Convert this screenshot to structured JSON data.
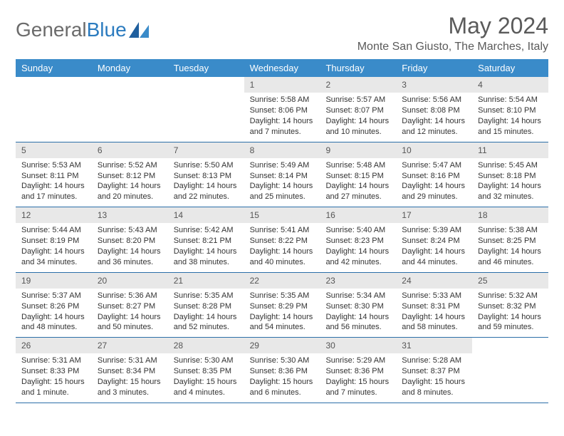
{
  "logo": {
    "text1": "General",
    "text2": "Blue"
  },
  "title": "May 2024",
  "location": "Monte San Giusto, The Marches, Italy",
  "colors": {
    "header_bg": "#3a8bc9",
    "header_text": "#ffffff",
    "daynum_bg": "#e8e8e8",
    "week_border": "#2b6fa8",
    "logo_gray": "#6b6b6b",
    "logo_blue": "#2b7bbf"
  },
  "day_names": [
    "Sunday",
    "Monday",
    "Tuesday",
    "Wednesday",
    "Thursday",
    "Friday",
    "Saturday"
  ],
  "weeks": [
    [
      {
        "n": "",
        "sunrise": "",
        "sunset": "",
        "daylight": ""
      },
      {
        "n": "",
        "sunrise": "",
        "sunset": "",
        "daylight": ""
      },
      {
        "n": "",
        "sunrise": "",
        "sunset": "",
        "daylight": ""
      },
      {
        "n": "1",
        "sunrise": "Sunrise: 5:58 AM",
        "sunset": "Sunset: 8:06 PM",
        "daylight": "Daylight: 14 hours and 7 minutes."
      },
      {
        "n": "2",
        "sunrise": "Sunrise: 5:57 AM",
        "sunset": "Sunset: 8:07 PM",
        "daylight": "Daylight: 14 hours and 10 minutes."
      },
      {
        "n": "3",
        "sunrise": "Sunrise: 5:56 AM",
        "sunset": "Sunset: 8:08 PM",
        "daylight": "Daylight: 14 hours and 12 minutes."
      },
      {
        "n": "4",
        "sunrise": "Sunrise: 5:54 AM",
        "sunset": "Sunset: 8:10 PM",
        "daylight": "Daylight: 14 hours and 15 minutes."
      }
    ],
    [
      {
        "n": "5",
        "sunrise": "Sunrise: 5:53 AM",
        "sunset": "Sunset: 8:11 PM",
        "daylight": "Daylight: 14 hours and 17 minutes."
      },
      {
        "n": "6",
        "sunrise": "Sunrise: 5:52 AM",
        "sunset": "Sunset: 8:12 PM",
        "daylight": "Daylight: 14 hours and 20 minutes."
      },
      {
        "n": "7",
        "sunrise": "Sunrise: 5:50 AM",
        "sunset": "Sunset: 8:13 PM",
        "daylight": "Daylight: 14 hours and 22 minutes."
      },
      {
        "n": "8",
        "sunrise": "Sunrise: 5:49 AM",
        "sunset": "Sunset: 8:14 PM",
        "daylight": "Daylight: 14 hours and 25 minutes."
      },
      {
        "n": "9",
        "sunrise": "Sunrise: 5:48 AM",
        "sunset": "Sunset: 8:15 PM",
        "daylight": "Daylight: 14 hours and 27 minutes."
      },
      {
        "n": "10",
        "sunrise": "Sunrise: 5:47 AM",
        "sunset": "Sunset: 8:16 PM",
        "daylight": "Daylight: 14 hours and 29 minutes."
      },
      {
        "n": "11",
        "sunrise": "Sunrise: 5:45 AM",
        "sunset": "Sunset: 8:18 PM",
        "daylight": "Daylight: 14 hours and 32 minutes."
      }
    ],
    [
      {
        "n": "12",
        "sunrise": "Sunrise: 5:44 AM",
        "sunset": "Sunset: 8:19 PM",
        "daylight": "Daylight: 14 hours and 34 minutes."
      },
      {
        "n": "13",
        "sunrise": "Sunrise: 5:43 AM",
        "sunset": "Sunset: 8:20 PM",
        "daylight": "Daylight: 14 hours and 36 minutes."
      },
      {
        "n": "14",
        "sunrise": "Sunrise: 5:42 AM",
        "sunset": "Sunset: 8:21 PM",
        "daylight": "Daylight: 14 hours and 38 minutes."
      },
      {
        "n": "15",
        "sunrise": "Sunrise: 5:41 AM",
        "sunset": "Sunset: 8:22 PM",
        "daylight": "Daylight: 14 hours and 40 minutes."
      },
      {
        "n": "16",
        "sunrise": "Sunrise: 5:40 AM",
        "sunset": "Sunset: 8:23 PM",
        "daylight": "Daylight: 14 hours and 42 minutes."
      },
      {
        "n": "17",
        "sunrise": "Sunrise: 5:39 AM",
        "sunset": "Sunset: 8:24 PM",
        "daylight": "Daylight: 14 hours and 44 minutes."
      },
      {
        "n": "18",
        "sunrise": "Sunrise: 5:38 AM",
        "sunset": "Sunset: 8:25 PM",
        "daylight": "Daylight: 14 hours and 46 minutes."
      }
    ],
    [
      {
        "n": "19",
        "sunrise": "Sunrise: 5:37 AM",
        "sunset": "Sunset: 8:26 PM",
        "daylight": "Daylight: 14 hours and 48 minutes."
      },
      {
        "n": "20",
        "sunrise": "Sunrise: 5:36 AM",
        "sunset": "Sunset: 8:27 PM",
        "daylight": "Daylight: 14 hours and 50 minutes."
      },
      {
        "n": "21",
        "sunrise": "Sunrise: 5:35 AM",
        "sunset": "Sunset: 8:28 PM",
        "daylight": "Daylight: 14 hours and 52 minutes."
      },
      {
        "n": "22",
        "sunrise": "Sunrise: 5:35 AM",
        "sunset": "Sunset: 8:29 PM",
        "daylight": "Daylight: 14 hours and 54 minutes."
      },
      {
        "n": "23",
        "sunrise": "Sunrise: 5:34 AM",
        "sunset": "Sunset: 8:30 PM",
        "daylight": "Daylight: 14 hours and 56 minutes."
      },
      {
        "n": "24",
        "sunrise": "Sunrise: 5:33 AM",
        "sunset": "Sunset: 8:31 PM",
        "daylight": "Daylight: 14 hours and 58 minutes."
      },
      {
        "n": "25",
        "sunrise": "Sunrise: 5:32 AM",
        "sunset": "Sunset: 8:32 PM",
        "daylight": "Daylight: 14 hours and 59 minutes."
      }
    ],
    [
      {
        "n": "26",
        "sunrise": "Sunrise: 5:31 AM",
        "sunset": "Sunset: 8:33 PM",
        "daylight": "Daylight: 15 hours and 1 minute."
      },
      {
        "n": "27",
        "sunrise": "Sunrise: 5:31 AM",
        "sunset": "Sunset: 8:34 PM",
        "daylight": "Daylight: 15 hours and 3 minutes."
      },
      {
        "n": "28",
        "sunrise": "Sunrise: 5:30 AM",
        "sunset": "Sunset: 8:35 PM",
        "daylight": "Daylight: 15 hours and 4 minutes."
      },
      {
        "n": "29",
        "sunrise": "Sunrise: 5:30 AM",
        "sunset": "Sunset: 8:36 PM",
        "daylight": "Daylight: 15 hours and 6 minutes."
      },
      {
        "n": "30",
        "sunrise": "Sunrise: 5:29 AM",
        "sunset": "Sunset: 8:36 PM",
        "daylight": "Daylight: 15 hours and 7 minutes."
      },
      {
        "n": "31",
        "sunrise": "Sunrise: 5:28 AM",
        "sunset": "Sunset: 8:37 PM",
        "daylight": "Daylight: 15 hours and 8 minutes."
      },
      {
        "n": "",
        "sunrise": "",
        "sunset": "",
        "daylight": ""
      }
    ]
  ]
}
